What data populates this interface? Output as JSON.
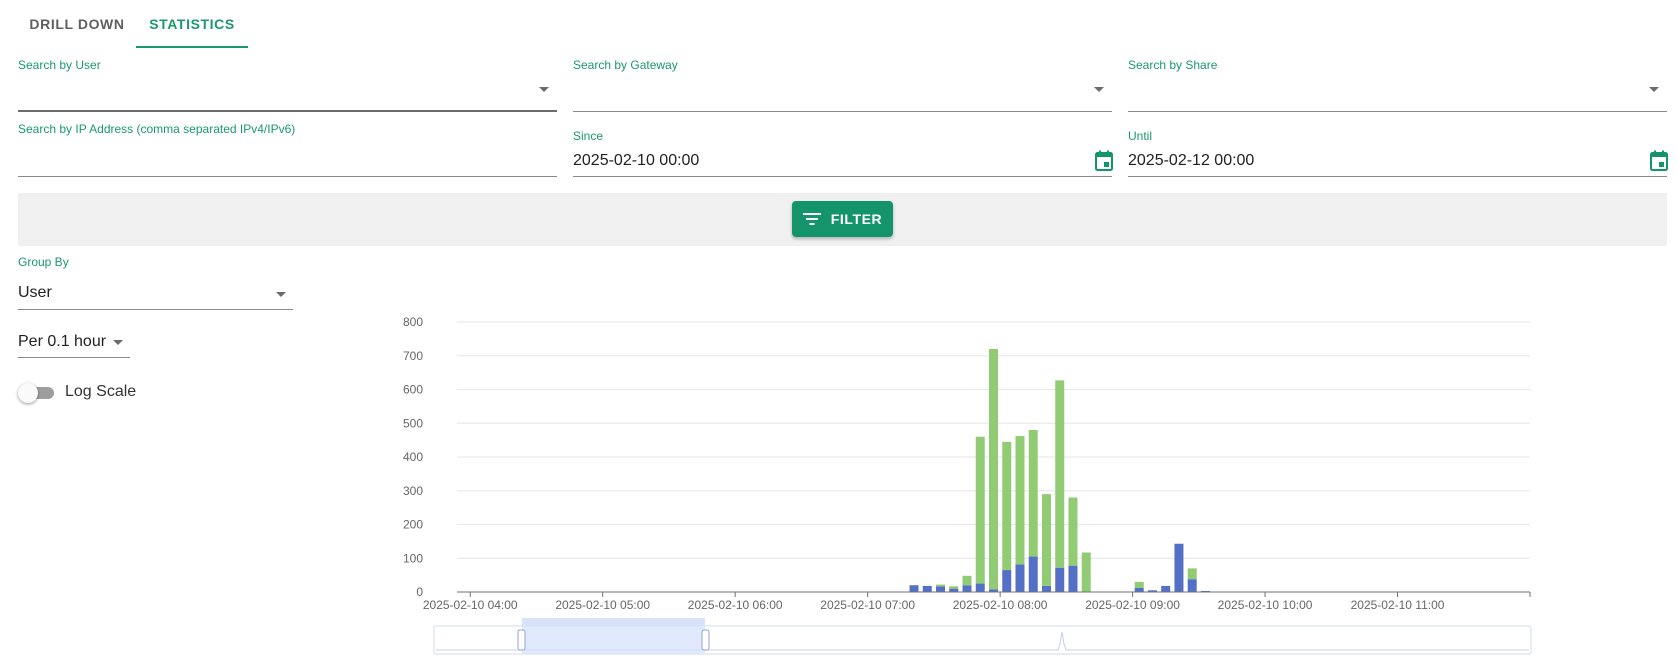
{
  "tabs": [
    {
      "label": "DRILL DOWN",
      "active": false
    },
    {
      "label": "STATISTICS",
      "active": true
    }
  ],
  "filters": {
    "user": {
      "label": "Search by User",
      "value": ""
    },
    "gateway": {
      "label": "Search by Gateway",
      "value": ""
    },
    "share": {
      "label": "Search by Share",
      "value": ""
    },
    "ip": {
      "label": "Search by IP Address (comma separated IPv4/IPv6)",
      "value": ""
    },
    "since": {
      "label": "Since",
      "value": "2025-02-10 00:00"
    },
    "until": {
      "label": "Until",
      "value": "2025-02-12 00:00"
    },
    "filter_button": "FILTER"
  },
  "options": {
    "group_by": {
      "label": "Group By",
      "value": "User"
    },
    "interval": {
      "value": "Per 0.1 hour"
    },
    "log_scale": {
      "label": "Log Scale",
      "enabled": false
    }
  },
  "colors": {
    "accent": "#1a9a6c",
    "series_green": "#91cc75",
    "series_blue": "#5470c6"
  },
  "chart_data": {
    "type": "bar",
    "stacked": true,
    "ylim": [
      0,
      800
    ],
    "y_ticks": [
      0,
      100,
      200,
      300,
      400,
      500,
      600,
      700,
      800
    ],
    "x_range": [
      "2025-02-10 03:54",
      "2025-02-10 12:00"
    ],
    "x_tick_labels": [
      "2025-02-10 04:00",
      "2025-02-10 05:00",
      "2025-02-10 06:00",
      "2025-02-10 07:00",
      "2025-02-10 08:00",
      "2025-02-10 09:00",
      "2025-02-10 10:00",
      "2025-02-10 11:00"
    ],
    "grid": true,
    "x": [
      "2025-02-10 07:18",
      "2025-02-10 07:24",
      "2025-02-10 07:30",
      "2025-02-10 07:36",
      "2025-02-10 07:42",
      "2025-02-10 07:48",
      "2025-02-10 07:54",
      "2025-02-10 08:00",
      "2025-02-10 08:06",
      "2025-02-10 08:12",
      "2025-02-10 08:18",
      "2025-02-10 08:24",
      "2025-02-10 08:30",
      "2025-02-10 08:36",
      "2025-02-10 09:00",
      "2025-02-10 09:06",
      "2025-02-10 09:12",
      "2025-02-10 09:18",
      "2025-02-10 09:24",
      "2025-02-10 09:30"
    ],
    "series": [
      {
        "color": "#5470c6",
        "values": [
          20,
          18,
          17,
          10,
          20,
          25,
          8,
          65,
          82,
          105,
          18,
          72,
          78,
          0,
          12,
          5,
          18,
          143,
          38,
          3
        ]
      },
      {
        "color": "#91cc75",
        "values": [
          0,
          0,
          5,
          7,
          28,
          435,
          712,
          380,
          380,
          375,
          272,
          555,
          202,
          117,
          18,
          0,
          0,
          0,
          32,
          0
        ]
      }
    ]
  }
}
